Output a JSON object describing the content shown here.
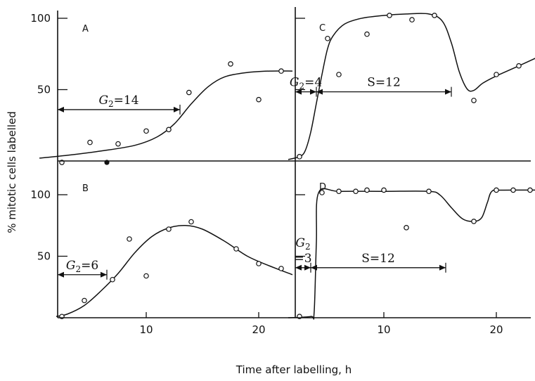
{
  "axis": {
    "xlabel": "Time after labelling, h",
    "ylabel": "% mitotic cells labelled"
  },
  "chart_data": [
    {
      "type": "scatter",
      "panel": "A",
      "xlim": [
        0,
        25
      ],
      "ylim": [
        0,
        100
      ],
      "y_ticks": [
        100,
        50
      ],
      "x_ticks": [],
      "points": [
        {
          "x": 2.5,
          "y": -1
        },
        {
          "x": 5,
          "y": 13
        },
        {
          "x": 7.5,
          "y": 12
        },
        {
          "x": 10,
          "y": 21
        },
        {
          "x": 12,
          "y": 22
        },
        {
          "x": 13.8,
          "y": 48
        },
        {
          "x": 17.5,
          "y": 68
        },
        {
          "x": 20,
          "y": 43
        },
        {
          "x": 22,
          "y": 63
        }
      ],
      "filled_points": [
        {
          "x": 6.5,
          "y": -1
        }
      ],
      "curve": [
        [
          0.5,
          2
        ],
        [
          3,
          4
        ],
        [
          6,
          7
        ],
        [
          9,
          11
        ],
        [
          11,
          17
        ],
        [
          12.5,
          26
        ],
        [
          14,
          40
        ],
        [
          15.5,
          52
        ],
        [
          17,
          59
        ],
        [
          19,
          62
        ],
        [
          21,
          63
        ],
        [
          23,
          63
        ]
      ],
      "annotations": [
        {
          "type": "interval",
          "x_start": 0,
          "x_end": 13,
          "y": 36,
          "label_var": "G",
          "label_sub": "2",
          "label_rest": "=14"
        }
      ]
    },
    {
      "type": "scatter",
      "panel": "B",
      "xlim": [
        0,
        25
      ],
      "ylim": [
        0,
        100
      ],
      "y_ticks": [
        100,
        50
      ],
      "x_ticks": [
        10,
        20
      ],
      "points": [
        {
          "x": 2.5,
          "y": 1
        },
        {
          "x": 4.5,
          "y": 14
        },
        {
          "x": 7,
          "y": 31
        },
        {
          "x": 8.5,
          "y": 64
        },
        {
          "x": 10,
          "y": 34
        },
        {
          "x": 12,
          "y": 72
        },
        {
          "x": 14,
          "y": 78
        },
        {
          "x": 18,
          "y": 56
        },
        {
          "x": 20,
          "y": 44
        },
        {
          "x": 22,
          "y": 40
        }
      ],
      "curve": [
        [
          2,
          1
        ],
        [
          3,
          3
        ],
        [
          4.5,
          10
        ],
        [
          6,
          22
        ],
        [
          7.5,
          36
        ],
        [
          9,
          53
        ],
        [
          10.5,
          66
        ],
        [
          12,
          73
        ],
        [
          13.5,
          75
        ],
        [
          15,
          72
        ],
        [
          17,
          62
        ],
        [
          19,
          50
        ],
        [
          21,
          42
        ],
        [
          23,
          35
        ]
      ],
      "annotations": [
        {
          "type": "interval",
          "x_start": 0,
          "x_end": 6.5,
          "y": 35,
          "label_var": "G",
          "label_sub": "2",
          "label_rest": "=6"
        }
      ]
    },
    {
      "type": "scatter",
      "panel": "C",
      "xlim": [
        0,
        25
      ],
      "ylim": [
        0,
        100
      ],
      "y_ticks": [],
      "x_ticks": [],
      "points": [
        {
          "x": 2.5,
          "y": 3
        },
        {
          "x": 5,
          "y": 85
        },
        {
          "x": 6,
          "y": 60
        },
        {
          "x": 8.5,
          "y": 88
        },
        {
          "x": 10.5,
          "y": 101
        },
        {
          "x": 12.5,
          "y": 98
        },
        {
          "x": 14.5,
          "y": 101
        },
        {
          "x": 18,
          "y": 42
        },
        {
          "x": 20,
          "y": 60
        },
        {
          "x": 22,
          "y": 66
        }
      ],
      "curve": [
        [
          1.5,
          1
        ],
        [
          2.5,
          3
        ],
        [
          3,
          7
        ],
        [
          3.5,
          20
        ],
        [
          4,
          40
        ],
        [
          4.5,
          60
        ],
        [
          5,
          78
        ],
        [
          5.5,
          87
        ],
        [
          6.5,
          95
        ],
        [
          8,
          99
        ],
        [
          10,
          101
        ],
        [
          12,
          102
        ],
        [
          14,
          102
        ],
        [
          15.2,
          97
        ],
        [
          16,
          82
        ],
        [
          16.7,
          62
        ],
        [
          17.4,
          50
        ],
        [
          18,
          49
        ],
        [
          18.8,
          54
        ],
        [
          20,
          59
        ],
        [
          22,
          66
        ],
        [
          24.5,
          75
        ]
      ],
      "annotations": [
        {
          "type": "interval",
          "x_start": 0,
          "x_end": 4,
          "y": 48,
          "label_var": "G",
          "label_sub": "2",
          "label_rest": "=4"
        },
        {
          "type": "interval",
          "x_start": 4,
          "x_end": 16,
          "y": 48,
          "label": "S=12"
        }
      ]
    },
    {
      "type": "scatter",
      "panel": "D",
      "xlim": [
        0,
        25
      ],
      "ylim": [
        0,
        100
      ],
      "y_ticks": [],
      "x_ticks": [
        10,
        20
      ],
      "points": [
        {
          "x": 2.5,
          "y": 1
        },
        {
          "x": 4.5,
          "y": 100
        },
        {
          "x": 6,
          "y": 101
        },
        {
          "x": 7.5,
          "y": 101
        },
        {
          "x": 8.5,
          "y": 102
        },
        {
          "x": 10,
          "y": 102
        },
        {
          "x": 12,
          "y": 72
        },
        {
          "x": 14,
          "y": 101
        },
        {
          "x": 18,
          "y": 77
        },
        {
          "x": 20,
          "y": 102
        },
        {
          "x": 21.5,
          "y": 102
        },
        {
          "x": 23,
          "y": 102
        }
      ],
      "curve": [
        [
          1.5,
          0
        ],
        [
          3.5,
          1
        ],
        [
          3.8,
          4
        ],
        [
          4,
          60
        ],
        [
          4.2,
          100
        ],
        [
          6,
          101
        ],
        [
          10,
          101
        ],
        [
          14,
          101
        ],
        [
          15,
          98
        ],
        [
          16,
          88
        ],
        [
          17,
          79
        ],
        [
          18,
          77
        ],
        [
          18.7,
          80
        ],
        [
          19.2,
          92
        ],
        [
          19.6,
          101
        ],
        [
          20.5,
          102
        ],
        [
          24.5,
          102
        ]
      ],
      "annotations": [
        {
          "type": "interval",
          "x_start": 0,
          "x_end": 3.5,
          "y": 40,
          "label_var": "G",
          "label_sub": "2",
          "label_rest": "=3"
        },
        {
          "type": "interval",
          "x_start": 3.5,
          "x_end": 15.5,
          "y": 40,
          "label": "S=12"
        }
      ]
    }
  ]
}
